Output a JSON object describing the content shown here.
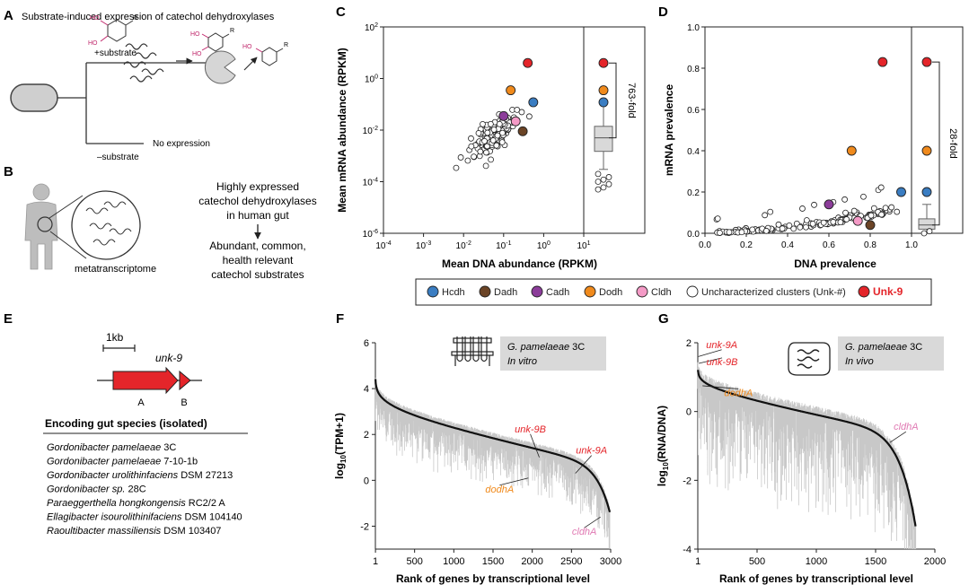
{
  "panels": {
    "A": {
      "letter": "A",
      "title": "Substrate-induced expression of catechol dehydroxylases",
      "ho": "HO",
      "plus": "+substrate",
      "minus": "–substrate",
      "no_expr": "No expression",
      "r": "R"
    },
    "B": {
      "letter": "B",
      "meta": "metatranscriptome",
      "line1": "Highly expressed",
      "line2": "catechol dehydroxylases",
      "line3": "in human gut",
      "line4": "Abundant, common,",
      "line5": "health relevant",
      "line6": "catechol substrates"
    },
    "C": {
      "letter": "C",
      "fold": "763-fold"
    },
    "D": {
      "letter": "D",
      "fold": "28-fold"
    },
    "E": {
      "letter": "E",
      "scale": "1kb",
      "gene": "unk-9",
      "gA": "A",
      "gB": "B",
      "species_title": "Encoding gut species (isolated)",
      "species": [
        {
          "genus": "Gordonibacter pamelaeae",
          "strain": "3C"
        },
        {
          "genus": "Gordonibacter pamelaeae",
          "strain": "7-10-1b"
        },
        {
          "genus": "Gordonibacter urolithinfaciens",
          "strain": "DSM 27213"
        },
        {
          "genus": "Gordonibacter sp.",
          "strain": "28C"
        },
        {
          "genus": "Paraeggerthella hongkongensis",
          "strain": "RC2/2 A"
        },
        {
          "genus": "Ellagibacter isourolithinifaciens",
          "strain": "DSM 104140"
        },
        {
          "genus": "Raoultibacter massiliensis",
          "strain": "DSM 103407"
        }
      ]
    },
    "F": {
      "letter": "F",
      "tag1": "G. pamelaeae",
      "tag1b": "3C",
      "tag2": "In vitro"
    },
    "G": {
      "letter": "G",
      "tag1": "G. pamelaeae",
      "tag1b": "3C",
      "tag2": "In vivo"
    }
  },
  "legend": [
    {
      "label": "Hcdh",
      "color": "#3a7dc2"
    },
    {
      "label": "Dadh",
      "color": "#6b4426"
    },
    {
      "label": "Cadh",
      "color": "#8c3d9a"
    },
    {
      "label": "Dodh",
      "color": "#f08a1c"
    },
    {
      "label": "Cldh",
      "color": "#f49ac6"
    },
    {
      "label": "Uncharacterized clusters (Unk-#)",
      "color": "#ffffff"
    },
    {
      "label": "Unk-9",
      "color": "#e4252a"
    }
  ],
  "chart_data": [
    {
      "id": "C",
      "type": "scatter",
      "xscale": "log",
      "yscale": "log",
      "xlabel": "Mean DNA abundance (RPKM)",
      "ylabel": "Mean mRNA abundance (RPKM)",
      "xlim": [
        0.0001,
        10
      ],
      "ylim": [
        1e-06,
        100
      ],
      "x_ticks": [
        "10-4",
        "10-3",
        "10-2",
        "10-1",
        "100",
        "101"
      ],
      "y_ticks": [
        "10-6",
        "10-4",
        "10-2",
        "100",
        "102"
      ],
      "highlighted": [
        {
          "name": "Unk-9",
          "x": 0.4,
          "y": 4
        },
        {
          "name": "Dodh",
          "x": 0.15,
          "y": 0.35
        },
        {
          "name": "Hcdh",
          "x": 0.55,
          "y": 0.12
        },
        {
          "name": "Cadh",
          "x": 0.1,
          "y": 0.035
        },
        {
          "name": "Cldh",
          "x": 0.2,
          "y": 0.022
        },
        {
          "name": "Dadh",
          "x": 0.3,
          "y": 0.009
        }
      ],
      "box": {
        "whisker_low": 0.0003,
        "q1": 0.0015,
        "median": 0.005,
        "q3": 0.014,
        "whisker_high": 0.11,
        "outliers": [
          5e-05,
          6e-05,
          8e-05,
          0.0001,
          0.00012,
          0.00015,
          0.0002
        ]
      },
      "box_points": [
        {
          "name": "Unk-9",
          "y": 4
        },
        {
          "name": "Dodh",
          "y": 0.35
        },
        {
          "name": "Hcdh",
          "y": 0.12
        }
      ]
    },
    {
      "id": "D",
      "type": "scatter",
      "xlabel": "DNA prevalence",
      "ylabel": "mRNA prevalence",
      "xlim": [
        0,
        1
      ],
      "ylim": [
        0,
        1
      ],
      "x_ticks": [
        "0.0",
        "0.2",
        "0.4",
        "0.6",
        "0.8",
        "1.0"
      ],
      "y_ticks": [
        "0.0",
        "0.2",
        "0.4",
        "0.6",
        "0.8",
        "1.0"
      ],
      "highlighted": [
        {
          "name": "Unk-9",
          "x": 0.86,
          "y": 0.83
        },
        {
          "name": "Dodh",
          "x": 0.71,
          "y": 0.4
        },
        {
          "name": "Hcdh",
          "x": 0.95,
          "y": 0.2
        },
        {
          "name": "Cadh",
          "x": 0.6,
          "y": 0.14
        },
        {
          "name": "Cldh",
          "x": 0.74,
          "y": 0.06
        },
        {
          "name": "Dadh",
          "x": 0.8,
          "y": 0.04
        }
      ],
      "box": {
        "whisker_low": 0.0,
        "q1": 0.02,
        "median": 0.04,
        "q3": 0.07,
        "whisker_high": 0.14,
        "outliers": [
          0.0,
          0.01
        ]
      },
      "box_points": [
        {
          "name": "Unk-9",
          "y": 0.83
        },
        {
          "name": "Dodh",
          "y": 0.4
        },
        {
          "name": "Hcdh",
          "y": 0.2
        }
      ]
    },
    {
      "id": "F",
      "type": "line",
      "xlabel": "Rank of genes by transcriptional level",
      "ylabel": "log10(TPM+1)",
      "xlim": [
        0,
        3000
      ],
      "ylim": [
        -3,
        6
      ],
      "x_ticks": [
        "1",
        "500",
        "1000",
        "1500",
        "2000",
        "2500",
        "3000"
      ],
      "y_ticks": [
        "-2",
        "0",
        "2",
        "4",
        "6"
      ],
      "annotations": [
        {
          "label": "unk-9B",
          "x": 2090,
          "y": 1.0
        },
        {
          "label": "unk-9A",
          "x": 2550,
          "y": 0.3
        },
        {
          "label": "dodhA",
          "x": 1950,
          "y": 0.1
        },
        {
          "label": "cldhA",
          "x": 2870,
          "y": -1.6
        }
      ]
    },
    {
      "id": "G",
      "type": "line",
      "xlabel": "Rank of genes by transcriptional level",
      "ylabel": "log10(RNA/DNA)",
      "xlim": [
        0,
        2000
      ],
      "ylim": [
        -4,
        2
      ],
      "x_ticks": [
        "1",
        "500",
        "1000",
        "1500",
        "2000"
      ],
      "y_ticks": [
        "-4",
        "-2",
        "0",
        "2"
      ],
      "annotations": [
        {
          "label": "unk-9A",
          "x": 5,
          "y": 1.6
        },
        {
          "label": "unk-9B",
          "x": 8,
          "y": 1.4
        },
        {
          "label": "dodhA",
          "x": 40,
          "y": 0.75
        },
        {
          "label": "cldhA",
          "x": 1620,
          "y": -0.9
        }
      ]
    }
  ]
}
